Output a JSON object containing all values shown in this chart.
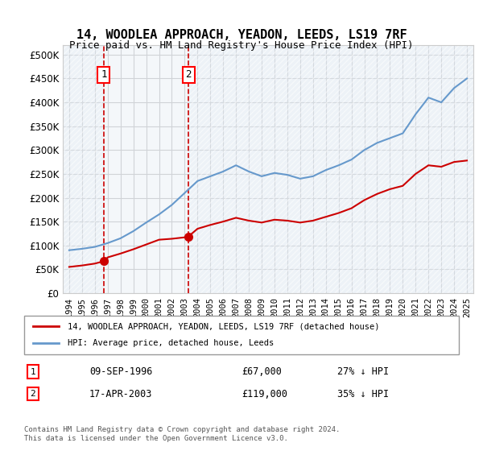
{
  "title_line1": "14, WOODLEA APPROACH, YEADON, LEEDS, LS19 7RF",
  "title_line2": "Price paid vs. HM Land Registry's House Price Index (HPI)",
  "ylabel": "",
  "xlabel": "",
  "xlim": [
    1993.5,
    2025.5
  ],
  "ylim": [
    0,
    520000
  ],
  "yticks": [
    0,
    50000,
    100000,
    150000,
    200000,
    250000,
    300000,
    350000,
    400000,
    450000,
    500000
  ],
  "ytick_labels": [
    "£0",
    "£50K",
    "£100K",
    "£150K",
    "£200K",
    "£250K",
    "£300K",
    "£350K",
    "£400K",
    "£450K",
    "£500K"
  ],
  "xticks": [
    1994,
    1995,
    1996,
    1997,
    1998,
    1999,
    2000,
    2001,
    2002,
    2003,
    2004,
    2005,
    2006,
    2007,
    2008,
    2009,
    2010,
    2011,
    2012,
    2013,
    2014,
    2015,
    2016,
    2017,
    2018,
    2019,
    2020,
    2021,
    2022,
    2023,
    2024,
    2025
  ],
  "hpi_color": "#6699cc",
  "price_color": "#cc0000",
  "marker_color": "#cc0000",
  "purchase1_x": 1996.69,
  "purchase1_y": 67000,
  "purchase1_label": "1",
  "purchase2_x": 2003.3,
  "purchase2_y": 119000,
  "purchase2_label": "2",
  "vline1_x": 1996.69,
  "vline2_x": 2003.3,
  "shade_left_end": 1996.69,
  "shade_right_start": 2003.3,
  "legend_line1": "14, WOODLEA APPROACH, YEADON, LEEDS, LS19 7RF (detached house)",
  "legend_line2": "HPI: Average price, detached house, Leeds",
  "table_row1_num": "1",
  "table_row1_date": "09-SEP-1996",
  "table_row1_price": "£67,000",
  "table_row1_hpi": "27% ↓ HPI",
  "table_row2_num": "2",
  "table_row2_date": "17-APR-2003",
  "table_row2_price": "£119,000",
  "table_row2_hpi": "35% ↓ HPI",
  "footnote": "Contains HM Land Registry data © Crown copyright and database right 2024.\nThis data is licensed under the Open Government Licence v3.0.",
  "bg_shade_color": "#dce6f1",
  "hatch_color": "#cccccc",
  "grid_color": "#cccccc"
}
